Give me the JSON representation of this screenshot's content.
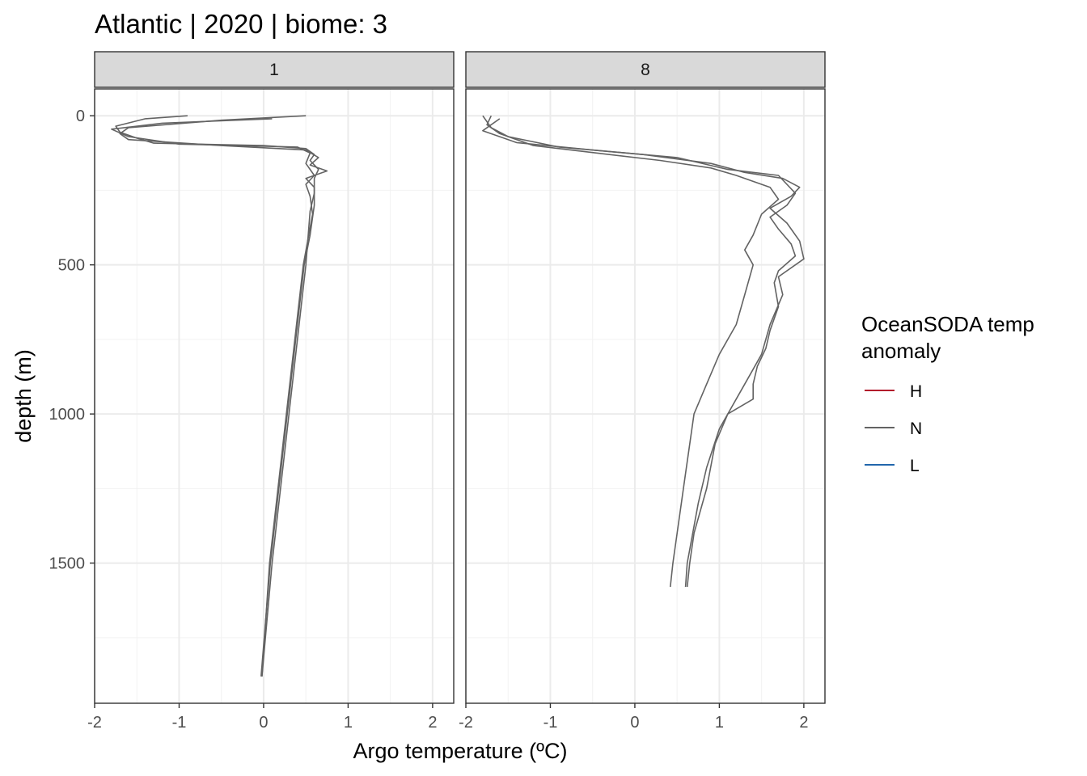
{
  "chart_data": {
    "type": "line",
    "title": "Atlantic | 2020 | biome: 3",
    "xlabel": "Argo temperature (ºC)",
    "ylabel": "depth (m)",
    "xlim": [
      -2,
      2.25
    ],
    "ylim": [
      1970,
      -90
    ],
    "y_reversed": true,
    "x_ticks": [
      -2,
      -1,
      0,
      1,
      2
    ],
    "y_ticks": [
      0,
      500,
      1000,
      1500
    ],
    "grid": true,
    "legend": {
      "title": "OceanSODA temp\nanomaly",
      "placement": "right",
      "entries": [
        {
          "label": "H",
          "color": "#B2182B"
        },
        {
          "label": "N",
          "color": "#636363"
        },
        {
          "label": "L",
          "color": "#2166AC"
        }
      ]
    },
    "panels": [
      {
        "label": "1",
        "series": [
          {
            "name": "N",
            "color": "#636363",
            "points": [
              [
                -0.9,
                0
              ],
              [
                -1.4,
                10
              ],
              [
                -1.75,
                35
              ],
              [
                -1.7,
                55
              ],
              [
                -1.5,
                75
              ],
              [
                -1.3,
                92
              ],
              [
                0.0,
                100
              ],
              [
                0.5,
                110
              ],
              [
                0.6,
                130
              ],
              [
                0.55,
                150
              ],
              [
                0.65,
                180
              ],
              [
                0.6,
                210
              ],
              [
                0.6,
                260
              ],
              [
                0.55,
                320
              ],
              [
                0.5,
                500
              ],
              [
                0.3,
                1000
              ],
              [
                0.1,
                1500
              ],
              [
                -0.02,
                1880
              ]
            ]
          },
          {
            "name": "N",
            "color": "#636363",
            "points": [
              [
                0.5,
                0
              ],
              [
                -0.5,
                15
              ],
              [
                -1.6,
                40
              ],
              [
                -1.7,
                60
              ],
              [
                -1.6,
                80
              ],
              [
                -0.5,
                100
              ],
              [
                0.5,
                115
              ],
              [
                0.65,
                140
              ],
              [
                0.55,
                165
              ],
              [
                0.75,
                185
              ],
              [
                0.5,
                210
              ],
              [
                0.6,
                240
              ],
              [
                0.6,
                300
              ],
              [
                0.55,
                400
              ],
              [
                0.48,
                500
              ],
              [
                0.28,
                1000
              ],
              [
                0.08,
                1500
              ],
              [
                -0.03,
                1880
              ]
            ]
          },
          {
            "name": "N",
            "color": "#636363",
            "points": [
              [
                0.1,
                10
              ],
              [
                -1.2,
                25
              ],
              [
                -1.8,
                45
              ],
              [
                -1.6,
                70
              ],
              [
                -1.0,
                95
              ],
              [
                0.4,
                105
              ],
              [
                0.55,
                125
              ],
              [
                0.5,
                160
              ],
              [
                0.6,
                200
              ],
              [
                0.5,
                230
              ],
              [
                0.55,
                270
              ],
              [
                0.58,
                330
              ],
              [
                0.47,
                500
              ],
              [
                0.27,
                1000
              ],
              [
                0.07,
                1500
              ],
              [
                -0.02,
                1880
              ]
            ]
          }
        ]
      },
      {
        "label": "8",
        "series": [
          {
            "name": "N",
            "color": "#636363",
            "points": [
              [
                -1.7,
                0
              ],
              [
                -1.75,
                30
              ],
              [
                -1.6,
                60
              ],
              [
                -1.2,
                100
              ],
              [
                -0.3,
                130
              ],
              [
                0.3,
                150
              ],
              [
                0.9,
                175
              ],
              [
                1.2,
                200
              ],
              [
                1.6,
                240
              ],
              [
                1.7,
                280
              ],
              [
                1.5,
                330
              ],
              [
                1.4,
                400
              ],
              [
                1.3,
                450
              ],
              [
                1.4,
                500
              ],
              [
                1.3,
                600
              ],
              [
                1.2,
                700
              ],
              [
                1.0,
                800
              ],
              [
                0.85,
                900
              ],
              [
                0.7,
                1000
              ],
              [
                0.6,
                1200
              ],
              [
                0.5,
                1400
              ],
              [
                0.45,
                1500
              ],
              [
                0.42,
                1580
              ]
            ]
          },
          {
            "name": "N",
            "color": "#636363",
            "points": [
              [
                -1.8,
                0
              ],
              [
                -1.7,
                40
              ],
              [
                -1.5,
                70
              ],
              [
                -0.9,
                105
              ],
              [
                0.1,
                130
              ],
              [
                0.9,
                160
              ],
              [
                1.3,
                190
              ],
              [
                1.75,
                210
              ],
              [
                1.95,
                240
              ],
              [
                1.85,
                270
              ],
              [
                1.6,
                310
              ],
              [
                1.8,
                360
              ],
              [
                1.95,
                420
              ],
              [
                2.0,
                480
              ],
              [
                1.7,
                540
              ],
              [
                1.75,
                600
              ],
              [
                1.6,
                700
              ],
              [
                1.5,
                800
              ],
              [
                1.4,
                850
              ],
              [
                1.3,
                900
              ],
              [
                1.2,
                950
              ],
              [
                1.0,
                1050
              ],
              [
                0.85,
                1180
              ],
              [
                0.75,
                1300
              ],
              [
                0.62,
                1500
              ],
              [
                0.6,
                1580
              ]
            ]
          },
          {
            "name": "N",
            "color": "#636363",
            "points": [
              [
                -1.6,
                10
              ],
              [
                -1.8,
                50
              ],
              [
                -1.4,
                90
              ],
              [
                -0.5,
                115
              ],
              [
                0.5,
                140
              ],
              [
                1.1,
                180
              ],
              [
                1.7,
                200
              ],
              [
                1.9,
                260
              ],
              [
                1.8,
                300
              ],
              [
                1.6,
                340
              ],
              [
                1.7,
                380
              ],
              [
                1.85,
                430
              ],
              [
                1.9,
                470
              ],
              [
                1.7,
                520
              ],
              [
                1.65,
                560
              ],
              [
                1.7,
                640
              ],
              [
                1.6,
                720
              ],
              [
                1.55,
                780
              ],
              [
                1.45,
                840
              ],
              [
                1.4,
                900
              ],
              [
                1.4,
                950
              ],
              [
                1.1,
                1000
              ],
              [
                0.95,
                1100
              ],
              [
                0.85,
                1250
              ],
              [
                0.7,
                1400
              ],
              [
                0.65,
                1500
              ],
              [
                0.62,
                1580
              ]
            ]
          }
        ]
      }
    ]
  }
}
